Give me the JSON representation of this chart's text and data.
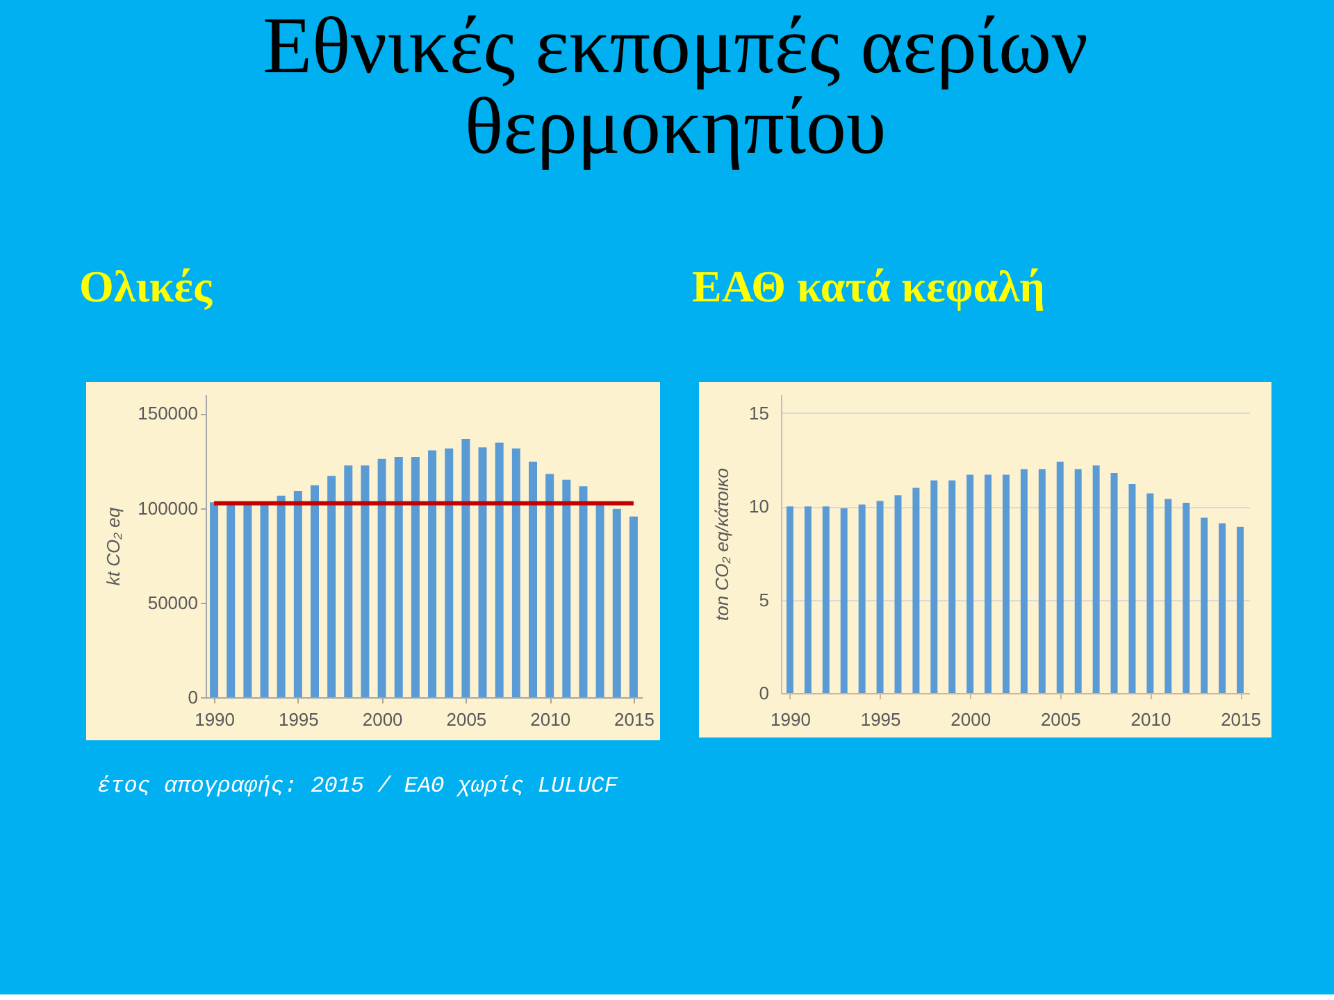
{
  "chart_data": [
    {
      "type": "other",
      "title": "Εθνικές εκπομπές αερίων θερμοκηπίου"
    },
    {
      "type": "bar",
      "title": "Ολικές",
      "ylabel": "kt CO₂ eq",
      "x": [
        1990,
        1991,
        1992,
        1993,
        1994,
        1995,
        1996,
        1997,
        1998,
        1999,
        2000,
        2001,
        2002,
        2003,
        2004,
        2005,
        2006,
        2007,
        2008,
        2009,
        2010,
        2011,
        2012,
        2013,
        2014,
        2015
      ],
      "values": [
        103000,
        103000,
        103000,
        103000,
        106500,
        109000,
        112000,
        117000,
        122500,
        122500,
        126000,
        127000,
        127000,
        130500,
        131500,
        136500,
        132000,
        134500,
        131500,
        124500,
        118000,
        115000,
        111500,
        103000,
        99500,
        95500
      ],
      "color": "#5b9bd5",
      "xlim": [
        1989.5,
        2015.5
      ],
      "xticks": [
        1990,
        1995,
        2000,
        2005,
        2010,
        2015
      ],
      "ylim": [
        0,
        160000
      ],
      "yticks": [
        0,
        50000,
        100000,
        150000
      ],
      "grid": false,
      "ref_lines": [
        {
          "axis": "y",
          "value": 102500,
          "color": "#c00000"
        }
      ],
      "annotations": [
        "έτος απογραφής: 2015 / ΕΑΘ χωρίς LULUCF"
      ]
    },
    {
      "type": "bar",
      "title": "ΕΑΘ κατά κεφαλή",
      "ylabel": "ton CO₂ eq/κάτοικο",
      "x": [
        1990,
        1991,
        1992,
        1993,
        1994,
        1995,
        1996,
        1997,
        1998,
        1999,
        2000,
        2001,
        2002,
        2003,
        2004,
        2005,
        2006,
        2007,
        2008,
        2009,
        2010,
        2011,
        2012,
        2013,
        2014,
        2015
      ],
      "values": [
        10.0,
        10.0,
        10.0,
        9.9,
        10.1,
        10.3,
        10.6,
        11.0,
        11.4,
        11.4,
        11.7,
        11.7,
        11.7,
        12.0,
        12.0,
        12.4,
        12.0,
        12.2,
        11.8,
        11.2,
        10.7,
        10.4,
        10.2,
        9.4,
        9.1,
        8.9
      ],
      "color": "#5b9bd5",
      "xlim": [
        1989.5,
        2015.5
      ],
      "xticks": [
        1990,
        1995,
        2000,
        2005,
        2010,
        2015
      ],
      "ylim": [
        0,
        16
      ],
      "yticks": [
        0,
        5,
        10,
        15
      ],
      "grid": "y"
    }
  ]
}
